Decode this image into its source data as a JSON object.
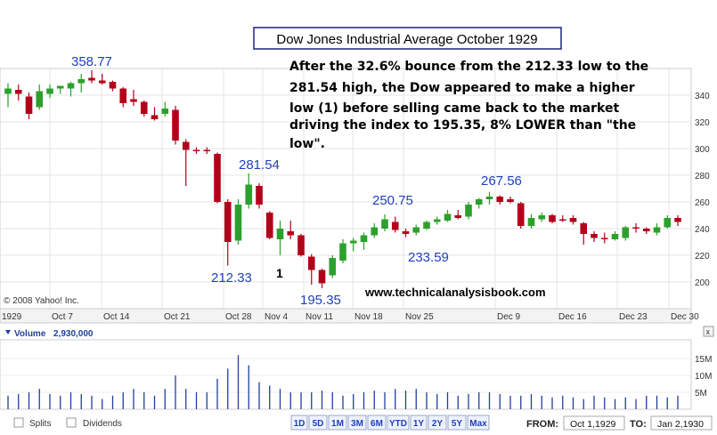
{
  "chart_data": {
    "type": "candlestick",
    "title": "Dow Jones Industrial Average October 1929",
    "ylim": [
      180,
      360
    ],
    "yticks": [
      200,
      220,
      240,
      260,
      280,
      300,
      320,
      340
    ],
    "x_labels": [
      "1929",
      "Oct 7",
      "Oct 14",
      "Oct 21",
      "Oct 28",
      "Nov 4",
      "Nov 11",
      "Nov 18",
      "Nov 25",
      "Dec 9",
      "Dec 16",
      "Dec 23",
      "Dec 30"
    ],
    "candles": [
      {
        "o": 341,
        "h": 349,
        "l": 331,
        "c": 345
      },
      {
        "o": 344,
        "h": 348,
        "l": 336,
        "c": 341
      },
      {
        "o": 339,
        "h": 342,
        "l": 322,
        "c": 326
      },
      {
        "o": 331,
        "h": 348,
        "l": 329,
        "c": 343
      },
      {
        "o": 341,
        "h": 348,
        "l": 338,
        "c": 345
      },
      {
        "o": 345,
        "h": 347,
        "l": 341,
        "c": 347
      },
      {
        "o": 345,
        "h": 350,
        "l": 339,
        "c": 349
      },
      {
        "o": 349,
        "h": 356,
        "l": 342,
        "c": 352
      },
      {
        "o": 353,
        "h": 358.77,
        "l": 349,
        "c": 351
      },
      {
        "o": 351,
        "h": 356,
        "l": 348,
        "c": 349
      },
      {
        "o": 350,
        "h": 351,
        "l": 343,
        "c": 345
      },
      {
        "o": 345,
        "h": 346,
        "l": 331,
        "c": 334
      },
      {
        "o": 337,
        "h": 344,
        "l": 332,
        "c": 335
      },
      {
        "o": 335,
        "h": 336,
        "l": 324,
        "c": 326
      },
      {
        "o": 325,
        "h": 331,
        "l": 321,
        "c": 322
      },
      {
        "o": 326,
        "h": 335,
        "l": 324,
        "c": 330
      },
      {
        "o": 329,
        "h": 332,
        "l": 303,
        "c": 306
      },
      {
        "o": 305,
        "h": 307,
        "l": 272,
        "c": 299
      },
      {
        "o": 299,
        "h": 301,
        "l": 296,
        "c": 298
      },
      {
        "o": 299,
        "h": 301,
        "l": 296,
        "c": 298
      },
      {
        "o": 296,
        "h": 297,
        "l": 259,
        "c": 260
      },
      {
        "o": 260,
        "h": 262,
        "l": 212.33,
        "c": 230
      },
      {
        "o": 231,
        "h": 262,
        "l": 228,
        "c": 258
      },
      {
        "o": 258,
        "h": 281.54,
        "l": 255,
        "c": 273
      },
      {
        "o": 272,
        "h": 274,
        "l": 255,
        "c": 258
      },
      {
        "o": 252,
        "h": 253,
        "l": 232,
        "c": 233
      },
      {
        "o": 232,
        "h": 246,
        "l": 220,
        "c": 240
      },
      {
        "o": 238,
        "h": 246,
        "l": 232,
        "c": 235
      },
      {
        "o": 235,
        "h": 236,
        "l": 219,
        "c": 220
      },
      {
        "o": 219,
        "h": 221,
        "l": 198,
        "c": 209
      },
      {
        "o": 209,
        "h": 210,
        "l": 195.35,
        "c": 199
      },
      {
        "o": 205,
        "h": 220,
        "l": 203,
        "c": 218
      },
      {
        "o": 216,
        "h": 232,
        "l": 214,
        "c": 229
      },
      {
        "o": 229,
        "h": 233,
        "l": 223,
        "c": 231
      },
      {
        "o": 230,
        "h": 237,
        "l": 224,
        "c": 235
      },
      {
        "o": 235,
        "h": 244,
        "l": 233,
        "c": 241
      },
      {
        "o": 240,
        "h": 250.75,
        "l": 238,
        "c": 247
      },
      {
        "o": 245,
        "h": 249,
        "l": 237,
        "c": 239
      },
      {
        "o": 238,
        "h": 240,
        "l": 233.59,
        "c": 236
      },
      {
        "o": 237,
        "h": 243,
        "l": 235,
        "c": 241
      },
      {
        "o": 240,
        "h": 246,
        "l": 239,
        "c": 245
      },
      {
        "o": 245,
        "h": 249,
        "l": 243,
        "c": 247
      },
      {
        "o": 246,
        "h": 254,
        "l": 245,
        "c": 251
      },
      {
        "o": 250,
        "h": 254,
        "l": 247,
        "c": 248
      },
      {
        "o": 249,
        "h": 260,
        "l": 247,
        "c": 258
      },
      {
        "o": 258,
        "h": 263,
        "l": 255,
        "c": 262
      },
      {
        "o": 262,
        "h": 267.56,
        "l": 258,
        "c": 264
      },
      {
        "o": 264,
        "h": 265,
        "l": 258,
        "c": 260
      },
      {
        "o": 262,
        "h": 264,
        "l": 259,
        "c": 260
      },
      {
        "o": 259,
        "h": 260,
        "l": 240,
        "c": 242
      },
      {
        "o": 242,
        "h": 251,
        "l": 240,
        "c": 248
      },
      {
        "o": 247,
        "h": 252,
        "l": 245,
        "c": 250
      },
      {
        "o": 250,
        "h": 251,
        "l": 244,
        "c": 245
      },
      {
        "o": 247,
        "h": 250,
        "l": 245,
        "c": 246
      },
      {
        "o": 248,
        "h": 250,
        "l": 243,
        "c": 245
      },
      {
        "o": 244,
        "h": 245,
        "l": 228,
        "c": 236
      },
      {
        "o": 236,
        "h": 238,
        "l": 230,
        "c": 233
      },
      {
        "o": 233,
        "h": 237,
        "l": 229,
        "c": 232
      },
      {
        "o": 232,
        "h": 238,
        "l": 231,
        "c": 236
      },
      {
        "o": 233,
        "h": 242,
        "l": 231,
        "c": 241
      },
      {
        "o": 241,
        "h": 244,
        "l": 237,
        "c": 240
      },
      {
        "o": 240,
        "h": 241,
        "l": 236,
        "c": 238
      },
      {
        "o": 237,
        "h": 244,
        "l": 235,
        "c": 241
      },
      {
        "o": 241,
        "h": 250,
        "l": 240,
        "c": 248
      },
      {
        "o": 248,
        "h": 250,
        "l": 242,
        "c": 245
      }
    ],
    "volume_unit": "M",
    "volume": [
      4,
      4.5,
      5,
      6,
      4.5,
      4,
      5,
      4.5,
      4,
      3,
      4,
      5,
      6,
      5,
      4,
      6,
      10,
      6,
      5,
      5,
      9,
      12,
      16,
      13,
      8,
      7,
      6,
      5,
      5,
      5,
      5.5,
      5,
      4,
      4.5,
      5,
      5.5,
      5,
      6,
      5.5,
      6,
      5,
      4.5,
      5,
      4,
      4.5,
      5,
      5,
      4.5,
      4,
      4,
      4.5,
      4,
      3.5,
      4,
      3.5,
      3,
      4,
      3.5,
      3,
      3.5,
      3,
      4,
      4,
      3.5,
      4
    ],
    "volume_ticks": [
      5,
      10,
      15
    ],
    "volume_ymax": 20,
    "annotations": {
      "peak": "358.77",
      "bounce_high": "281.54",
      "low": "212.33",
      "new_low": "195.35",
      "marker_1": "1",
      "high_250": "250.75",
      "low_233": "233.59",
      "high_267": "267.56",
      "commentary": [
        "After the 32.6% bounce from the 212.33 low to the",
        "281.54 high, the Dow appeared to make a higher",
        "low (1) before selling came back to the market",
        "driving the index to 195.35, 8% LOWER than \"the",
        "low\"."
      ],
      "website": "www.technicalanalysisbook.com",
      "copyright": "© 2008 Yahoo! Inc."
    },
    "colors": {
      "up": "#2ca02c",
      "down": "#b3001b",
      "volume": "#1f3f9f",
      "annot": "#1f3fbf"
    }
  },
  "volume_header": {
    "label": "Volume",
    "value": "2,930,000"
  },
  "footer": {
    "splits_label": "Splits",
    "dividends_label": "Dividends",
    "ranges": [
      "1D",
      "5D",
      "1M",
      "3M",
      "6M",
      "YTD",
      "1Y",
      "2Y",
      "5Y",
      "Max"
    ],
    "from_label": "FROM:",
    "from_value": "Oct 1,1929",
    "to_label": "TO:",
    "to_value": "Jan 2,1930"
  }
}
